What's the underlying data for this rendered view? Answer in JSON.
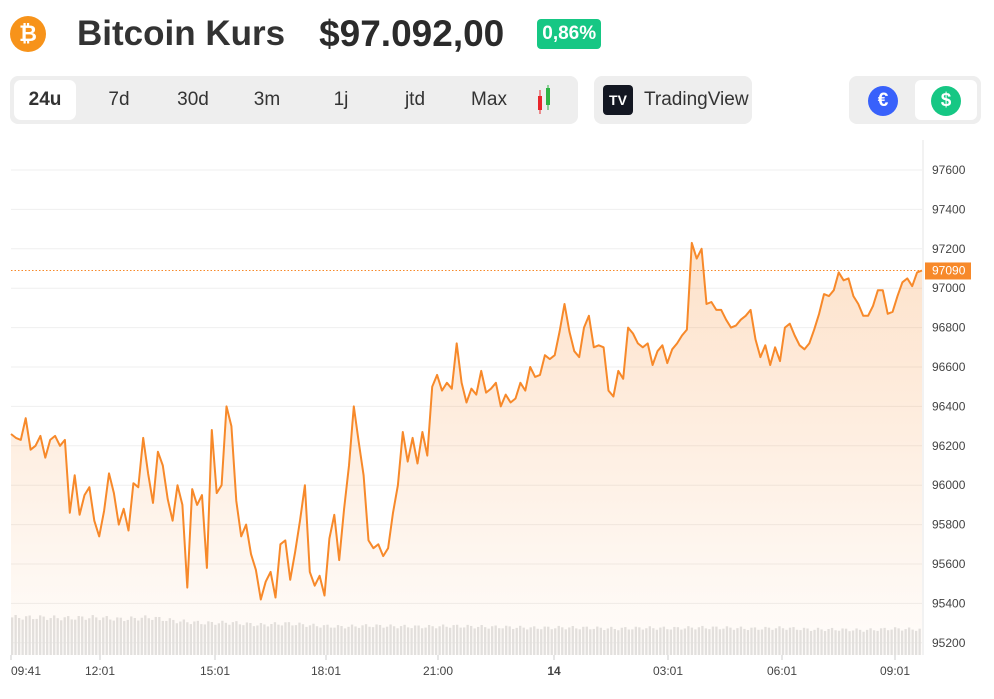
{
  "header": {
    "title": "Bitcoin Kurs",
    "price": "$97.092,00",
    "change": "0,86%",
    "coin_icon": "bitcoin-icon"
  },
  "ranges": [
    {
      "label": "24u",
      "active": true
    },
    {
      "label": "7d"
    },
    {
      "label": "30d"
    },
    {
      "label": "3m"
    },
    {
      "label": "1j"
    },
    {
      "label": "jtd"
    },
    {
      "label": "Max"
    }
  ],
  "tradingview": {
    "label": "TradingView",
    "logo": "17"
  },
  "currency": {
    "eur": "€",
    "usd": "$",
    "selected": "usd"
  },
  "colors": {
    "line": "#f7892a",
    "up": "#16c784",
    "eur": "#3861fb"
  },
  "chart_data": {
    "type": "line",
    "ylim": [
      95150,
      97750
    ],
    "yticks": [
      95200,
      95400,
      95600,
      95800,
      96000,
      96200,
      96400,
      96600,
      96800,
      97000,
      97200,
      97400,
      97600
    ],
    "xticks": [
      "09:41",
      "12:01",
      "15:01",
      "18:01",
      "21:00",
      "14",
      "03:01",
      "06:01",
      "09:01"
    ],
    "current_label": "97090",
    "current_value": 97090,
    "prices": [
      96260,
      96240,
      96230,
      96340,
      96180,
      96200,
      96250,
      96140,
      96230,
      96250,
      96200,
      96230,
      95860,
      96050,
      95850,
      95950,
      95990,
      95820,
      95740,
      95870,
      96060,
      95960,
      95800,
      95880,
      95770,
      96010,
      95990,
      96240,
      96060,
      95910,
      96170,
      96100,
      95930,
      95820,
      96000,
      95900,
      95480,
      95980,
      95900,
      95950,
      95580,
      96280,
      95960,
      96000,
      96400,
      96300,
      95920,
      95740,
      95800,
      95650,
      95570,
      95420,
      95510,
      95560,
      95430,
      95700,
      95720,
      95520,
      95660,
      95820,
      96000,
      95560,
      95490,
      95540,
      95440,
      95730,
      95850,
      95620,
      95880,
      96100,
      96400,
      96220,
      96050,
      95720,
      95680,
      95700,
      95640,
      95680,
      95860,
      96000,
      96270,
      96120,
      96240,
      96110,
      96270,
      96150,
      96500,
      96560,
      96480,
      96520,
      96490,
      96720,
      96520,
      96420,
      96490,
      96460,
      96580,
      96470,
      96490,
      96520,
      96400,
      96460,
      96420,
      96440,
      96520,
      96480,
      96600,
      96550,
      96560,
      96660,
      96640,
      96660,
      96780,
      96920,
      96780,
      96680,
      96650,
      96800,
      96860,
      96700,
      96710,
      96700,
      96480,
      96450,
      96580,
      96540,
      96800,
      96770,
      96720,
      96700,
      96720,
      96610,
      96680,
      96710,
      96620,
      96690,
      96720,
      96760,
      96790,
      97230,
      97150,
      97200,
      96920,
      96930,
      96890,
      96890,
      96840,
      96800,
      96810,
      96840,
      96860,
      96890,
      96740,
      96650,
      96710,
      96610,
      96700,
      96630,
      96800,
      96820,
      96760,
      96710,
      96690,
      96720,
      96790,
      96870,
      96970,
      96960,
      96990,
      97080,
      97040,
      97050,
      96960,
      96920,
      96860,
      96860,
      96910,
      96990,
      96990,
      96870,
      96880,
      96960,
      97030,
      97050,
      97010,
      97080,
      97090
    ],
    "volume_relative": [
      1,
      1,
      0.98,
      1,
      0.95,
      1,
      0.9,
      0.85,
      0.86,
      0.8,
      0.84,
      0.78,
      0.75,
      0.78,
      0.76,
      0.75,
      0.77,
      0.75,
      0.74,
      0.72,
      0.73,
      0.72,
      0.7,
      0.72,
      0.71,
      0.73,
      0.72,
      0.7,
      0.72,
      0.68,
      0.68,
      0.66,
      0.7,
      0.68
    ]
  }
}
